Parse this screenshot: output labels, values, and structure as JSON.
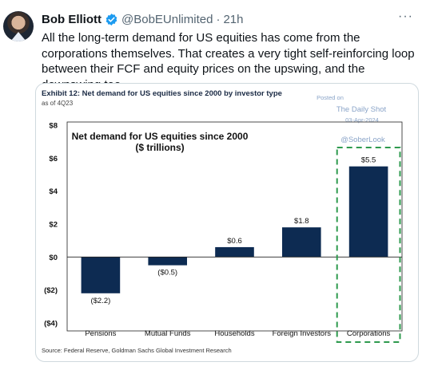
{
  "tweet": {
    "author_name": "Bob Elliott",
    "handle": "@BobEUnlimited",
    "separator": "·",
    "time": "21h",
    "more": "···",
    "text": "All the long-term demand for US equities has come from the corporations themselves.  That creates a very tight self-reinforcing loop between their FCF and equity prices on the upswing, and the downswing too."
  },
  "exhibit": {
    "heading": "Exhibit 12: Net demand for US equities since 2000 by investor type",
    "as_of": "as of 4Q23",
    "source": "Source: Federal Reserve, Goldman Sachs Global Investment Research"
  },
  "watermark": {
    "posted_on": "Posted on",
    "site": "The Daily Shot",
    "date": "03-Apr-2024",
    "handle": "@SoberLook"
  },
  "colors": {
    "bar": "#0d2b52",
    "highlight": "#2e9a4e",
    "watermark": "#8aa4c8",
    "verified": "#1d9bf0"
  },
  "chart_data": {
    "type": "bar",
    "title": "Net demand for US equities since 2000",
    "subtitle": "($ trillions)",
    "categories": [
      "Pensions",
      "Mutual Funds",
      "Households",
      "Foreign Investors",
      "Corporations"
    ],
    "values": [
      -2.2,
      -0.5,
      0.6,
      1.8,
      5.5
    ],
    "data_labels": [
      "($2.2)",
      "($0.5)",
      "$0.6",
      "$1.8",
      "$5.5"
    ],
    "ylim": [
      -4,
      8
    ],
    "yticks": [
      8,
      6,
      4,
      2,
      0,
      -2,
      -4
    ],
    "ytick_labels": [
      "$8",
      "$6",
      "$4",
      "$2",
      "$0",
      "($2)",
      "($4)"
    ],
    "highlight_category": "Corporations",
    "grid": false
  }
}
